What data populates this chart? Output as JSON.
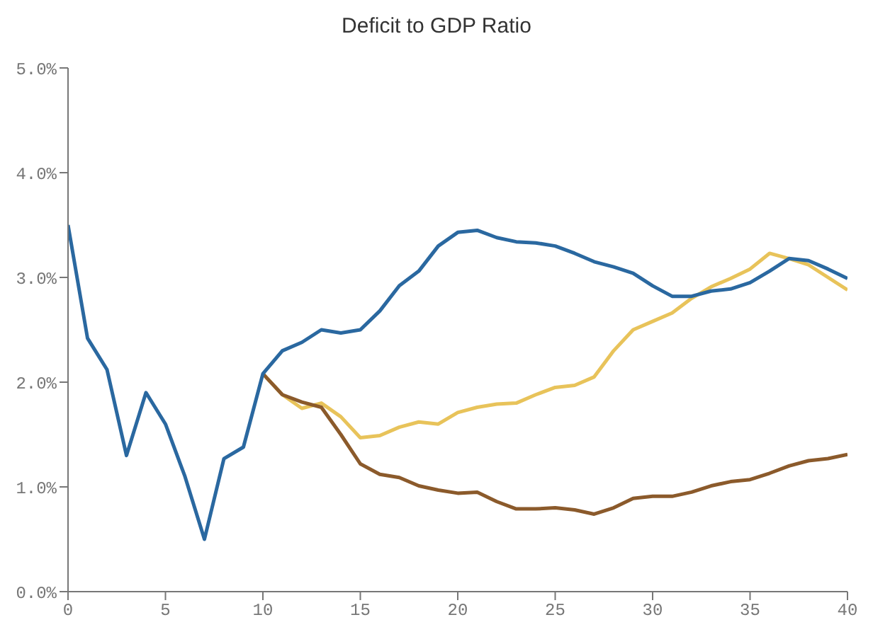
{
  "chart_data": {
    "type": "line",
    "title": "Deficit to GDP Ratio",
    "x": [
      0,
      1,
      2,
      3,
      4,
      5,
      6,
      7,
      8,
      9,
      10,
      11,
      12,
      13,
      14,
      15,
      16,
      17,
      18,
      19,
      20,
      21,
      22,
      23,
      24,
      25,
      26,
      27,
      28,
      29,
      30,
      31,
      32,
      33,
      34,
      35,
      36,
      37,
      38,
      39,
      40
    ],
    "series": [
      {
        "color": "#e8c35a",
        "values": [
          null,
          null,
          null,
          null,
          null,
          null,
          null,
          null,
          null,
          null,
          2.08,
          1.88,
          1.75,
          1.8,
          1.67,
          1.47,
          1.49,
          1.57,
          1.62,
          1.6,
          1.71,
          1.76,
          1.79,
          1.8,
          1.88,
          1.95,
          1.97,
          2.05,
          2.3,
          2.5,
          2.58,
          2.66,
          2.8,
          2.91,
          2.99,
          3.08,
          3.23,
          3.18,
          3.12,
          3.0,
          2.88
        ]
      },
      {
        "color": "#8b5a2b",
        "values": [
          null,
          null,
          null,
          null,
          null,
          null,
          null,
          null,
          null,
          null,
          2.08,
          1.88,
          1.81,
          1.76,
          1.5,
          1.22,
          1.12,
          1.09,
          1.01,
          0.97,
          0.94,
          0.95,
          0.86,
          0.79,
          0.79,
          0.8,
          0.78,
          0.74,
          0.8,
          0.89,
          0.91,
          0.91,
          0.95,
          1.01,
          1.05,
          1.07,
          1.13,
          1.2,
          1.25,
          1.27,
          1.31
        ]
      },
      {
        "color": "#2a68a0",
        "values": [
          3.5,
          2.42,
          2.12,
          1.3,
          1.9,
          1.6,
          1.1,
          0.5,
          1.27,
          1.38,
          2.08,
          2.3,
          2.38,
          2.5,
          2.47,
          2.5,
          2.68,
          2.92,
          3.06,
          3.3,
          3.43,
          3.45,
          3.38,
          3.34,
          3.33,
          3.3,
          3.23,
          3.15,
          3.1,
          3.04,
          2.92,
          2.82,
          2.82,
          2.87,
          2.89,
          2.95,
          3.06,
          3.18,
          3.16,
          3.08,
          2.99
        ]
      }
    ],
    "xlim": [
      0,
      40
    ],
    "xticks": [
      0,
      5,
      10,
      15,
      20,
      25,
      30,
      35,
      40
    ],
    "ylim": [
      0,
      5
    ],
    "yticks": [
      {
        "value": 0,
        "label": "0.0%"
      },
      {
        "value": 1,
        "label": "1.0%"
      },
      {
        "value": 2,
        "label": "2.0%"
      },
      {
        "value": 3,
        "label": "3.0%"
      },
      {
        "value": 4,
        "label": "4.0%"
      },
      {
        "value": 5,
        "label": "5.0%"
      }
    ],
    "marker": "none",
    "line_style": "solid"
  }
}
